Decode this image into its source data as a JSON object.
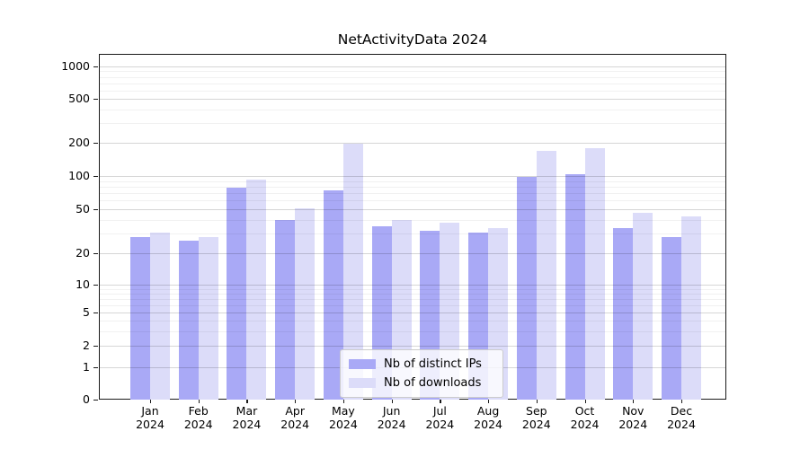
{
  "title": "NetActivityData 2024",
  "y_axis": {
    "tick_labels": [
      "0",
      "1",
      "2",
      "5",
      "10",
      "20",
      "50",
      "100",
      "200",
      "500",
      "1000"
    ]
  },
  "x_axis": {
    "months": [
      "Jan",
      "Feb",
      "Mar",
      "Apr",
      "May",
      "Jun",
      "Jul",
      "Aug",
      "Sep",
      "Oct",
      "Nov",
      "Dec"
    ],
    "year": "2024"
  },
  "legend": {
    "items": [
      {
        "label": "Nb of distinct IPs",
        "color": "#a9a9f6"
      },
      {
        "label": "Nb of downloads",
        "color": "#dcdcf9"
      }
    ]
  },
  "chart_data": {
    "type": "bar",
    "title": "NetActivityData 2024",
    "categories": [
      "Jan 2024",
      "Feb 2024",
      "Mar 2024",
      "Apr 2024",
      "May 2024",
      "Jun 2024",
      "Jul 2024",
      "Aug 2024",
      "Sep 2024",
      "Oct 2024",
      "Nov 2024",
      "Dec 2024"
    ],
    "series": [
      {
        "name": "Nb of distinct IPs",
        "color": "#a9a9f6",
        "values": [
          28,
          26,
          79,
          40,
          74,
          35,
          32,
          31,
          98,
          103,
          34,
          28
        ]
      },
      {
        "name": "Nb of downloads",
        "color": "#dcdcf9",
        "values": [
          31,
          28,
          93,
          51,
          195,
          40,
          38,
          34,
          170,
          180,
          46,
          43
        ]
      }
    ],
    "xlabel": "",
    "ylabel": "",
    "yscale": "symlog",
    "y_ticks": [
      0,
      1,
      2,
      5,
      10,
      20,
      50,
      100,
      200,
      500,
      1000
    ],
    "y_minor_ticks": [
      3,
      4,
      6,
      7,
      8,
      9,
      30,
      40,
      60,
      70,
      80,
      90,
      300,
      400,
      600,
      700,
      800,
      900
    ],
    "ylim": [
      0,
      1400
    ],
    "grid": true,
    "legend_position": "lower center"
  }
}
